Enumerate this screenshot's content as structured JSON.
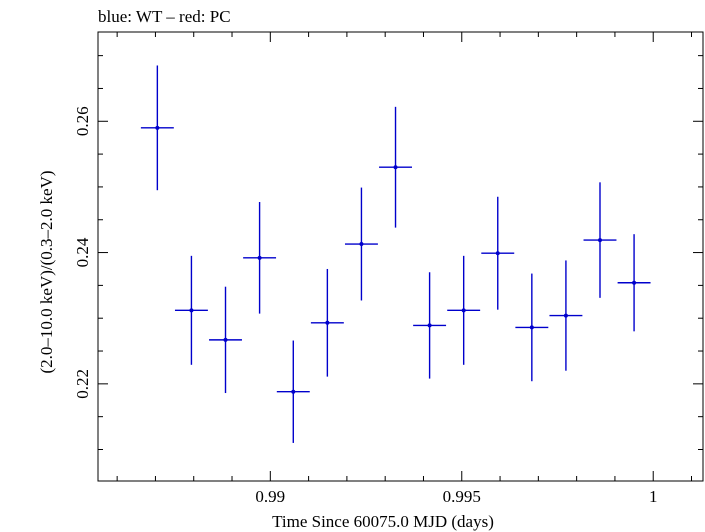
{
  "chart_data": {
    "type": "scatter",
    "title": "blue: WT – red: PC",
    "xlabel": "Time Since 60075.0 MJD (days)",
    "ylabel": "(2.0–10.0 keV)/(0.3–2.0 keV)",
    "xlim": [
      0.9855,
      1.0013
    ],
    "ylim": [
      0.2052,
      0.2736
    ],
    "x_ticks": [
      {
        "value": 0.99,
        "label": "0.99"
      },
      {
        "value": 0.995,
        "label": "0.995"
      },
      {
        "value": 1.0,
        "label": "1"
      }
    ],
    "y_ticks": [
      {
        "value": 0.22,
        "label": "0.22"
      },
      {
        "value": 0.24,
        "label": "0.24"
      },
      {
        "value": 0.26,
        "label": "0.26"
      }
    ],
    "grid": false,
    "series": [
      {
        "color": "#0000cc",
        "points": [
          {
            "x": 0.98705,
            "xerr": 0.00043,
            "y": 0.259,
            "yerr": 0.0095
          },
          {
            "x": 0.98794,
            "xerr": 0.00043,
            "y": 0.2312,
            "yerr": 0.0083
          },
          {
            "x": 0.98883,
            "xerr": 0.00043,
            "y": 0.2267,
            "yerr": 0.0081
          },
          {
            "x": 0.98972,
            "xerr": 0.00043,
            "y": 0.2392,
            "yerr": 0.0085
          },
          {
            "x": 0.9906,
            "xerr": 0.00043,
            "y": 0.2188,
            "yerr": 0.0078
          },
          {
            "x": 0.99149,
            "xerr": 0.00043,
            "y": 0.2293,
            "yerr": 0.0082
          },
          {
            "x": 0.99238,
            "xerr": 0.00043,
            "y": 0.2413,
            "yerr": 0.0086
          },
          {
            "x": 0.99327,
            "xerr": 0.00043,
            "y": 0.253,
            "yerr": 0.0092
          },
          {
            "x": 0.99416,
            "xerr": 0.00043,
            "y": 0.2289,
            "yerr": 0.0081
          },
          {
            "x": 0.99505,
            "xerr": 0.00043,
            "y": 0.2312,
            "yerr": 0.0083
          },
          {
            "x": 0.99594,
            "xerr": 0.00043,
            "y": 0.2399,
            "yerr": 0.0086
          },
          {
            "x": 0.99683,
            "xerr": 0.00043,
            "y": 0.2286,
            "yerr": 0.0082
          },
          {
            "x": 0.99772,
            "xerr": 0.00043,
            "y": 0.2304,
            "yerr": 0.0084
          },
          {
            "x": 0.99861,
            "xerr": 0.00043,
            "y": 0.2419,
            "yerr": 0.0088
          },
          {
            "x": 0.9995,
            "xerr": 0.00043,
            "y": 0.2354,
            "yerr": 0.0074
          }
        ]
      }
    ]
  }
}
